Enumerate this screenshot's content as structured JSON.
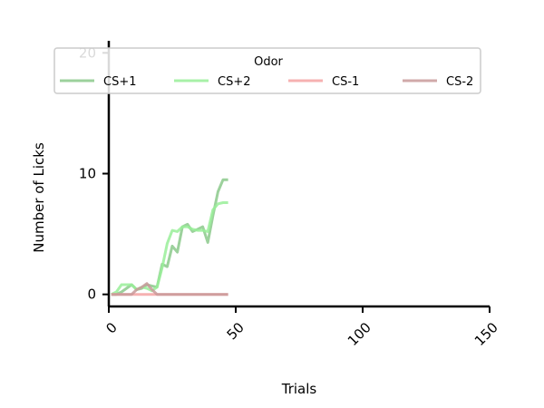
{
  "chart_data": {
    "type": "line",
    "xlabel": "Trials",
    "ylabel": "Number of Licks",
    "xlim": [
      0,
      150
    ],
    "ylim": [
      -1,
      21
    ],
    "xticks": [
      0,
      50,
      100,
      150
    ],
    "yticks": [
      0,
      10,
      20
    ],
    "legend": {
      "title": "Odor",
      "placement": "top-center"
    },
    "series": [
      {
        "name": "CS+1",
        "color": "#8bc98b",
        "x": [
          1,
          3,
          5,
          7,
          9,
          11,
          13,
          15,
          17,
          19,
          21,
          23,
          25,
          27,
          29,
          31,
          33,
          35,
          37,
          39,
          41,
          43,
          45,
          47
        ],
        "y": [
          0,
          0,
          0.2,
          0.5,
          0.8,
          0.4,
          0.5,
          0.8,
          0.7,
          0.6,
          2.5,
          2.3,
          4.0,
          3.5,
          5.6,
          5.8,
          5.2,
          5.4,
          5.6,
          4.3,
          6.5,
          8.5,
          9.5,
          9.5
        ]
      },
      {
        "name": "CS+2",
        "color": "#99ef99",
        "x": [
          1,
          3,
          5,
          7,
          9,
          11,
          13,
          15,
          17,
          19,
          21,
          23,
          25,
          27,
          29,
          31,
          33,
          35,
          37,
          39,
          41,
          43,
          45,
          47
        ],
        "y": [
          0,
          0.2,
          0.8,
          0.8,
          0.8,
          0.4,
          0.6,
          0.5,
          0.3,
          0.6,
          2.2,
          4.2,
          5.3,
          5.2,
          5.6,
          5.6,
          5.4,
          5.3,
          5.3,
          5.2,
          7.0,
          7.5,
          7.6,
          7.6
        ]
      },
      {
        "name": "CS-1",
        "color": "#f5a3a3",
        "x": [
          1,
          47
        ],
        "y": [
          0,
          0
        ]
      },
      {
        "name": "CS-2",
        "color": "#c89a9a",
        "x": [
          1,
          3,
          5,
          7,
          9,
          11,
          13,
          15,
          17,
          19,
          21,
          47
        ],
        "y": [
          0,
          0,
          0,
          0,
          0,
          0.4,
          0.6,
          0.9,
          0.4,
          0,
          0,
          0
        ]
      }
    ]
  }
}
